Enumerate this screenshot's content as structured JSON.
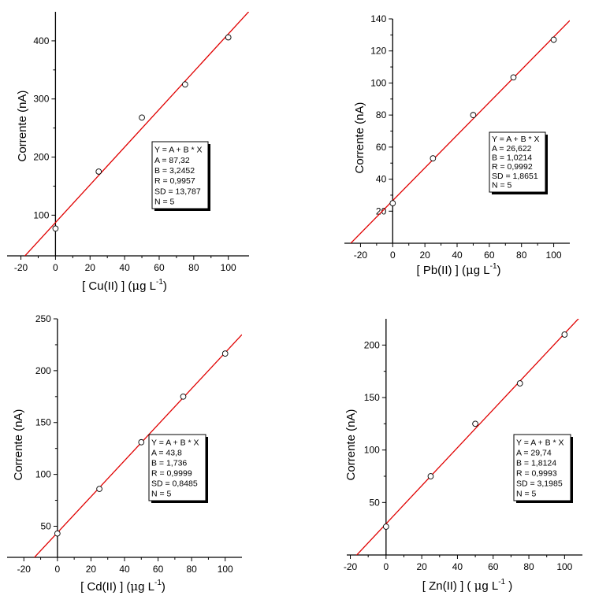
{
  "colors": {
    "fit_line": "#e00000",
    "points": "#000000",
    "axes": "#000000"
  },
  "chart_data": [
    {
      "type": "scatter",
      "xlabel_parts": [
        "[ Cu(II) ]  (",
        "μ",
        "g L",
        "-1",
        ")"
      ],
      "ylabel": "Corrente (nA)",
      "xlim": [
        -28,
        112
      ],
      "ylim": [
        30,
        450
      ],
      "xticks": [
        -20,
        0,
        20,
        40,
        60,
        80,
        100
      ],
      "yticks": [
        100,
        200,
        300,
        400
      ],
      "x": [
        0,
        25,
        50,
        75,
        100
      ],
      "y": [
        77,
        175,
        268,
        325,
        406
      ],
      "fit": {
        "A": 87.32,
        "B": 3.2452
      },
      "fit_text": [
        "Y = A + B * X",
        "A = 87,32",
        "B = 3,2452",
        "R = 0,9957",
        "SD = 13,787",
        "N = 5"
      ]
    },
    {
      "type": "scatter",
      "xlabel_parts": [
        "[ Pb(II) ]  (",
        "μ",
        "g L",
        "-1",
        ")"
      ],
      "ylabel": "Corrente (nA)",
      "xlim": [
        -30,
        110
      ],
      "ylim": [
        0,
        140
      ],
      "xticks": [
        -20,
        0,
        20,
        40,
        60,
        80,
        100
      ],
      "yticks": [
        20,
        40,
        60,
        80,
        100,
        120,
        140
      ],
      "x": [
        0,
        25,
        50,
        75,
        100
      ],
      "y": [
        25,
        53,
        80,
        103.5,
        127
      ],
      "fit": {
        "A": 26.622,
        "B": 1.0214
      },
      "fit_text": [
        "Y = A + B * X",
        "A = 26,622",
        "B = 1,0214",
        "R = 0,9992",
        "SD = 1,8651",
        "N = 5"
      ]
    },
    {
      "type": "scatter",
      "xlabel_parts": [
        "[ Cd(II) ]  (",
        "μ",
        "g L",
        "-1",
        ")"
      ],
      "ylabel": "Corrente (nA)",
      "xlim": [
        -30,
        110
      ],
      "ylim": [
        20,
        250
      ],
      "xticks": [
        -20,
        0,
        20,
        40,
        60,
        80,
        100
      ],
      "yticks": [
        50,
        100,
        150,
        200,
        250
      ],
      "x": [
        0,
        25,
        50,
        75,
        100
      ],
      "y": [
        43,
        86,
        131,
        175,
        216.5
      ],
      "fit": {
        "A": 43.8,
        "B": 1.736
      },
      "fit_text": [
        "Y = A + B * X",
        "A = 43,8",
        "B = 1,736",
        "R = 0,9999",
        "SD = 0,8485",
        "N = 5"
      ]
    },
    {
      "type": "scatter",
      "xlabel_parts": [
        "[ Zn(II) ]  ( ",
        "μ",
        "g L",
        "-1",
        " )"
      ],
      "ylabel": "Corrente (nA)",
      "xlim": [
        -22,
        110
      ],
      "ylim": [
        0,
        225
      ],
      "xticks": [
        -20,
        0,
        20,
        40,
        60,
        80,
        100
      ],
      "yticks": [
        50,
        100,
        150,
        200
      ],
      "x": [
        0,
        25,
        50,
        75,
        100
      ],
      "y": [
        27,
        75,
        125,
        163.5,
        210
      ],
      "fit": {
        "A": 29.74,
        "B": 1.8124
      },
      "fit_text": [
        "Y = A + B * X",
        "A = 29,74",
        "B = 1,8124",
        "R = 0,9993",
        "SD = 3,1985",
        "N = 5"
      ]
    }
  ]
}
